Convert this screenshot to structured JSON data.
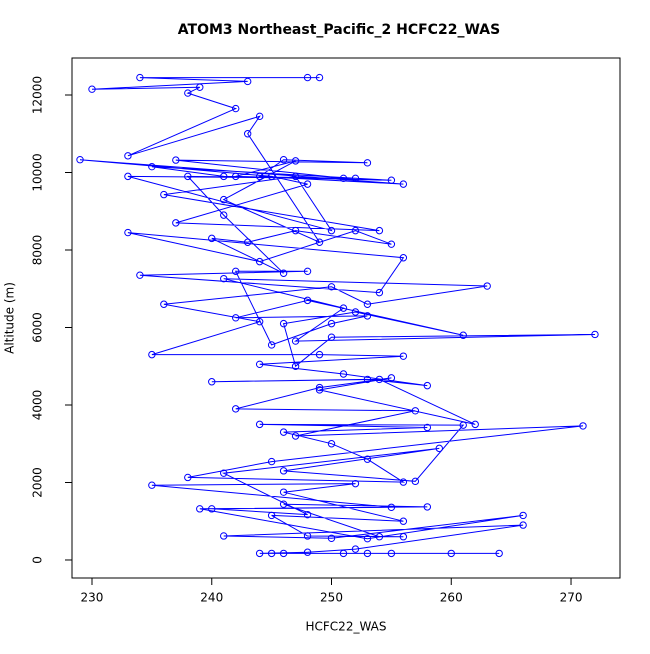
{
  "chart_data": {
    "type": "line",
    "title": "ATOM3 Northeast_Pacific_2 HCFC22_WAS",
    "x_label": "HCFC22_WAS",
    "y_label": "Altitude (m)",
    "color": "#0000ff",
    "x": [
      245,
      264,
      253,
      246,
      255,
      251,
      260,
      244,
      248,
      252,
      266,
      241,
      250,
      266,
      253,
      239,
      258,
      246,
      254,
      256,
      248,
      245,
      256,
      246,
      252,
      235,
      255,
      240,
      248,
      241,
      259,
      246,
      257,
      261,
      244,
      258,
      246,
      250,
      253,
      256,
      238,
      245,
      271,
      247,
      257,
      242,
      249,
      255,
      249,
      262,
      254,
      240,
      253,
      258,
      251,
      244,
      256,
      249,
      235,
      244,
      236,
      250,
      253,
      263,
      241,
      251,
      247,
      272,
      250,
      247,
      246,
      252,
      261,
      248,
      242,
      253,
      250,
      245,
      242,
      248,
      234,
      254,
      256,
      233,
      244,
      252,
      255,
      247,
      243,
      240,
      246,
      241,
      238,
      251,
      237,
      253,
      246,
      244,
      256,
      229,
      245,
      248,
      237,
      254,
      236,
      247,
      250,
      233,
      252,
      241,
      235,
      255,
      242,
      247,
      241,
      249,
      243,
      244,
      233,
      242,
      238,
      239,
      230,
      243,
      234,
      249,
      248
    ],
    "values": [
      170,
      170,
      170,
      170,
      170,
      170,
      170,
      170,
      200,
      280,
      900,
      620,
      560,
      1150,
      550,
      1320,
      1370,
      1440,
      600,
      600,
      620,
      1150,
      1000,
      1750,
      1970,
      1930,
      1360,
      1320,
      1170,
      2240,
      2880,
      2300,
      2030,
      3480,
      3500,
      3420,
      3300,
      3000,
      2600,
      2010,
      2130,
      2540,
      3460,
      3200,
      3850,
      3900,
      4450,
      4700,
      4390,
      3500,
      4660,
      4600,
      4660,
      4500,
      4800,
      5050,
      5260,
      5300,
      5300,
      6150,
      6600,
      7050,
      6600,
      7070,
      7260,
      6500,
      5650,
      5820,
      5750,
      5000,
      6100,
      6400,
      5800,
      6700,
      6250,
      6300,
      6100,
      5550,
      7450,
      7450,
      7350,
      6900,
      7800,
      8450,
      7700,
      8500,
      8150,
      8500,
      8200,
      8300,
      7400,
      8900,
      9900,
      9850,
      10320,
      10250,
      10330,
      9900,
      9700,
      10330,
      9900,
      9700,
      8700,
      8500,
      9430,
      9900,
      8500,
      9900,
      9850,
      9900,
      10150,
      9800,
      9900,
      10300,
      9300,
      8200,
      11000,
      11450,
      10430,
      11650,
      12050,
      12200,
      12150,
      12350,
      12450,
      12450,
      12450
    ],
    "xlim": [
      228.33,
      274.09
    ],
    "ylim": [
      -465,
      12955
    ],
    "xticks": [
      230,
      240,
      250,
      260,
      270
    ],
    "yticks": [
      0,
      2000,
      4000,
      6000,
      8000,
      10000,
      12000
    ]
  }
}
